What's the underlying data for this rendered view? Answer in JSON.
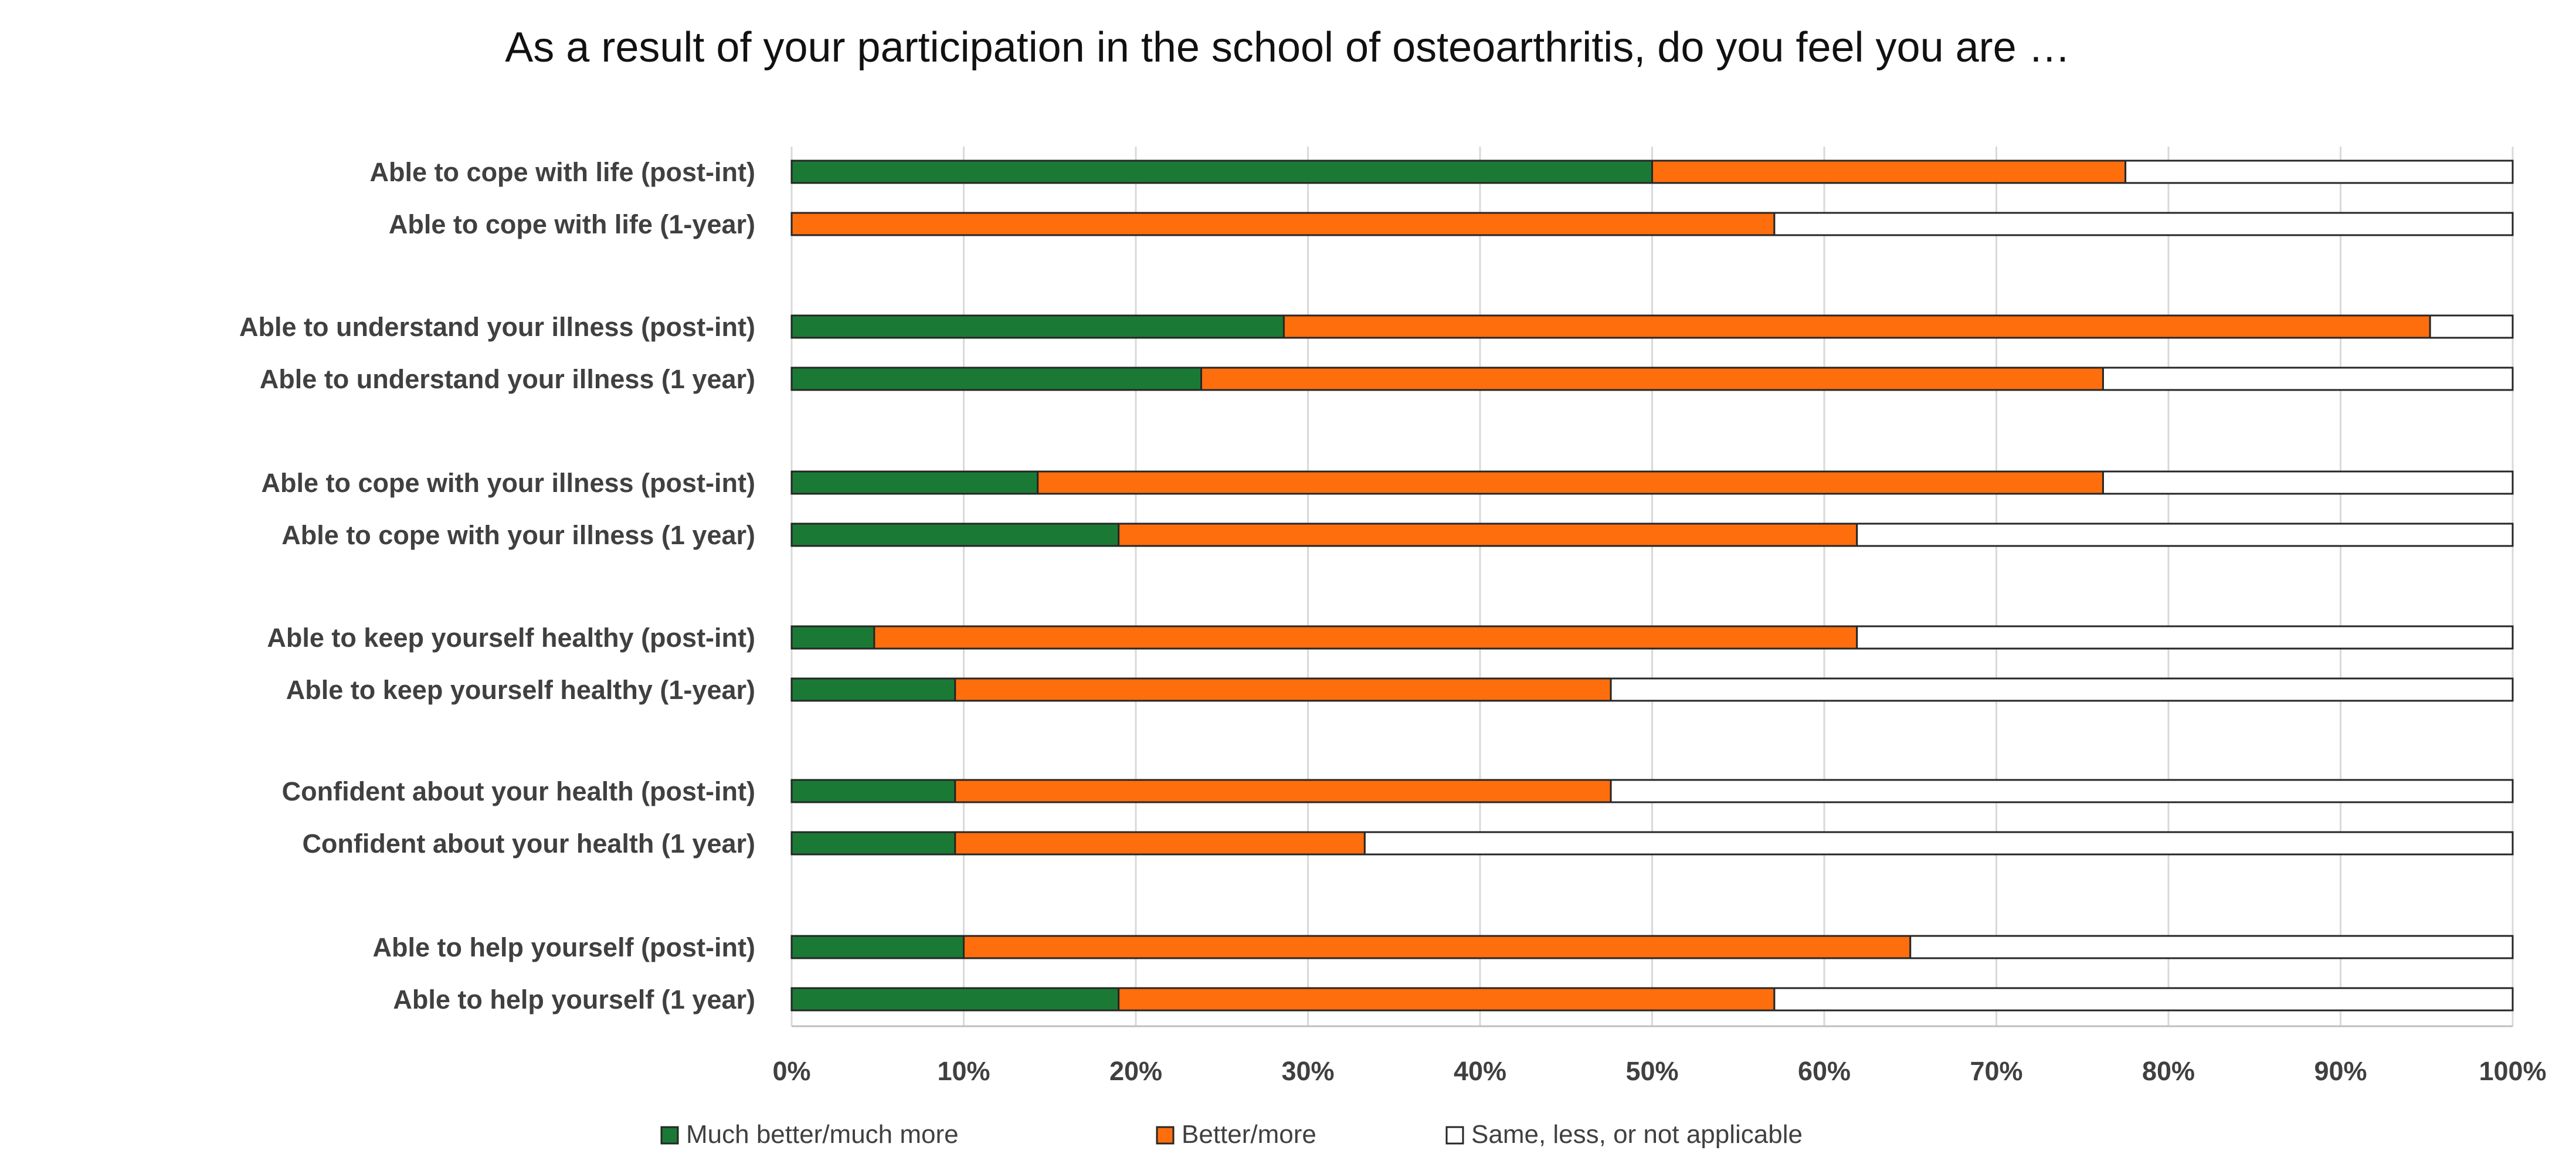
{
  "chart_data": {
    "type": "bar",
    "orientation": "horizontal",
    "stacked": true,
    "percent_stacked": true,
    "title": "As a result of your participation in the school of osteoarthritis, do you feel you are …",
    "xlabel": "",
    "ylabel": "",
    "xlim": [
      0,
      100
    ],
    "x_ticks": [
      "0%",
      "10%",
      "20%",
      "30%",
      "40%",
      "50%",
      "60%",
      "70%",
      "80%",
      "90%",
      "100%"
    ],
    "grid": "vertical",
    "legend_position": "bottom",
    "categories": [
      "Able to cope with life (post-int)",
      "Able to cope with life (1-year)",
      "Able to understand your illness (post-int)",
      "Able to understand your illness (1 year)",
      "Able to cope with your illness (post-int)",
      "Able to cope with your illness (1 year)",
      "Able to keep yourself healthy (post-int)",
      "Able to keep yourself healthy (1-year)",
      "Confident about your health (post-int)",
      "Confident about your health (1 year)",
      "Able to help yourself (post-int)",
      "Able to help yourself (1 year)"
    ],
    "group_breaks_after": [
      1,
      3,
      5,
      7,
      9
    ],
    "series": [
      {
        "name": "Much better/much more",
        "color": "#1a7a35",
        "values": [
          50.0,
          0.0,
          28.6,
          23.8,
          14.3,
          19.0,
          4.8,
          9.5,
          9.5,
          9.5,
          10.0,
          19.0
        ]
      },
      {
        "name": "Better/more",
        "color": "#ff6e0d",
        "values": [
          27.5,
          57.1,
          66.6,
          52.4,
          61.9,
          42.9,
          57.1,
          38.1,
          38.1,
          23.8,
          55.0,
          38.1
        ]
      },
      {
        "name": "Same, less, or not applicable",
        "color": "#ffffff",
        "values": [
          22.5,
          42.9,
          4.8,
          23.8,
          23.8,
          38.1,
          38.1,
          52.4,
          52.4,
          66.7,
          35.0,
          42.9
        ]
      }
    ]
  }
}
